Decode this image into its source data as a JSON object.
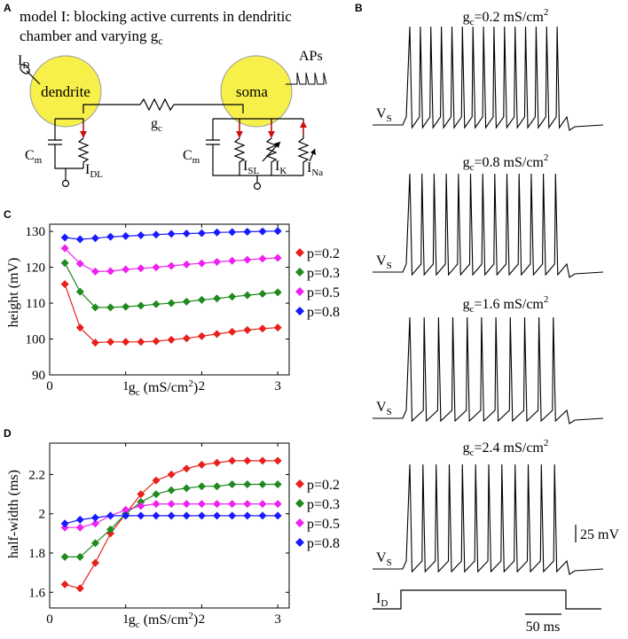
{
  "panels": {
    "a": "A",
    "b": "B",
    "c": "C",
    "d": "D"
  },
  "model": {
    "title_line1": "model I: blocking active currents in dendritic",
    "title_line2": "chamber and varying g",
    "title_sub": "c",
    "dendrite": "dendrite",
    "soma": "soma",
    "aps": "APs",
    "id_main": "I",
    "id_sub": "D",
    "gc_main": "g",
    "gc_sub": "c",
    "cm_main": "C",
    "cm_sub": "m",
    "idl_main": "I",
    "idl_sub": "DL",
    "isl_main": "I",
    "isl_sub": "SL",
    "ik_main": "I",
    "ik_sub": "K",
    "ina_main": "I",
    "ina_sub": "Na"
  },
  "traces": [
    {
      "label_main": "g",
      "label_sub": "c",
      "label_rest": "=0.2 mS/cm",
      "label_sup": "2",
      "vs_main": "V",
      "vs_sub": "S",
      "spikes": 15
    },
    {
      "label_main": "g",
      "label_sub": "c",
      "label_rest": "=0.8 mS/cm",
      "label_sup": "2",
      "vs_main": "V",
      "vs_sub": "S",
      "spikes": 13
    },
    {
      "label_main": "g",
      "label_sub": "c",
      "label_rest": "=1.6 mS/cm",
      "label_sup": "2",
      "vs_main": "V",
      "vs_sub": "S",
      "spikes": 11
    },
    {
      "label_main": "g",
      "label_sub": "c",
      "label_rest": "=2.4 mS/cm",
      "label_sup": "2",
      "vs_main": "V",
      "vs_sub": "S",
      "spikes": 12
    }
  ],
  "scale": {
    "voltage": "25 mV",
    "time": "50 ms",
    "id_main": "I",
    "id_sub": "D"
  },
  "chart_data": [
    {
      "type": "line",
      "panel": "C",
      "ylabel": "height (mV)",
      "xlabel_main": "g",
      "xlabel_sub": "c",
      "xlabel_rest": " (mS/cm",
      "xlabel_sup": "2",
      "xlabel_end": ")",
      "xlim": [
        0,
        3.15
      ],
      "ylim": [
        90,
        132
      ],
      "xticks": [
        0,
        1,
        2,
        3
      ],
      "yticks": [
        90,
        100,
        110,
        120,
        130
      ],
      "x": [
        0.2,
        0.4,
        0.6,
        0.8,
        1.0,
        1.2,
        1.4,
        1.6,
        1.8,
        2.0,
        2.2,
        2.4,
        2.6,
        2.8,
        3.0
      ],
      "series": [
        {
          "name": "p=0.2",
          "color": "#e8201c",
          "values": [
            115.3,
            103.2,
            99.0,
            99.2,
            99.2,
            99.2,
            99.4,
            99.8,
            100.2,
            100.8,
            101.4,
            102.0,
            102.5,
            102.9,
            103.2
          ]
        },
        {
          "name": "p=0.3",
          "color": "#1f8a1f",
          "values": [
            121.2,
            113.2,
            108.8,
            108.8,
            109.0,
            109.3,
            109.7,
            110.0,
            110.4,
            110.9,
            111.3,
            111.8,
            112.2,
            112.6,
            113.0
          ]
        },
        {
          "name": "p=0.5",
          "color": "#ee22ee",
          "values": [
            125.3,
            121.0,
            118.8,
            118.9,
            119.4,
            119.7,
            120.0,
            120.4,
            120.8,
            121.1,
            121.5,
            121.8,
            122.1,
            122.4,
            122.6
          ]
        },
        {
          "name": "p=0.8",
          "color": "#1a1aff",
          "values": [
            128.3,
            127.8,
            128.1,
            128.5,
            128.7,
            128.9,
            129.1,
            129.3,
            129.4,
            129.5,
            129.7,
            129.8,
            129.9,
            130.0,
            130.1
          ]
        }
      ]
    },
    {
      "type": "line",
      "panel": "D",
      "ylabel": "half-width (ms)",
      "xlabel_main": "g",
      "xlabel_sub": "c",
      "xlabel_rest": " (mS/cm",
      "xlabel_sup": "2",
      "xlabel_end": ")",
      "xlim": [
        0,
        3.15
      ],
      "ylim": [
        1.52,
        2.36
      ],
      "xticks": [
        0,
        1,
        2,
        3
      ],
      "yticks": [
        1.6,
        1.8,
        2.0,
        2.2
      ],
      "ytick_labels": [
        "1.6",
        "1.8",
        "2",
        "2.2"
      ],
      "x": [
        0.2,
        0.4,
        0.6,
        0.8,
        1.0,
        1.2,
        1.4,
        1.6,
        1.8,
        2.0,
        2.2,
        2.4,
        2.6,
        2.8,
        3.0
      ],
      "series": [
        {
          "name": "p=0.2",
          "color": "#e8201c",
          "values": [
            1.64,
            1.62,
            1.75,
            1.9,
            2.0,
            2.1,
            2.17,
            2.2,
            2.23,
            2.25,
            2.26,
            2.27,
            2.27,
            2.27,
            2.27
          ]
        },
        {
          "name": "p=0.3",
          "color": "#1f8a1f",
          "values": [
            1.78,
            1.78,
            1.85,
            1.92,
            2.0,
            2.06,
            2.1,
            2.12,
            2.13,
            2.14,
            2.14,
            2.15,
            2.15,
            2.15,
            2.15
          ]
        },
        {
          "name": "p=0.5",
          "color": "#ee22ee",
          "values": [
            1.93,
            1.93,
            1.95,
            1.99,
            2.02,
            2.04,
            2.05,
            2.05,
            2.05,
            2.05,
            2.05,
            2.05,
            2.05,
            2.05,
            2.05
          ]
        },
        {
          "name": "p=0.8",
          "color": "#1a1aff",
          "values": [
            1.95,
            1.97,
            1.98,
            1.99,
            1.99,
            1.99,
            1.99,
            1.99,
            1.99,
            1.99,
            1.99,
            1.99,
            1.99,
            1.99,
            1.99
          ]
        }
      ]
    }
  ]
}
